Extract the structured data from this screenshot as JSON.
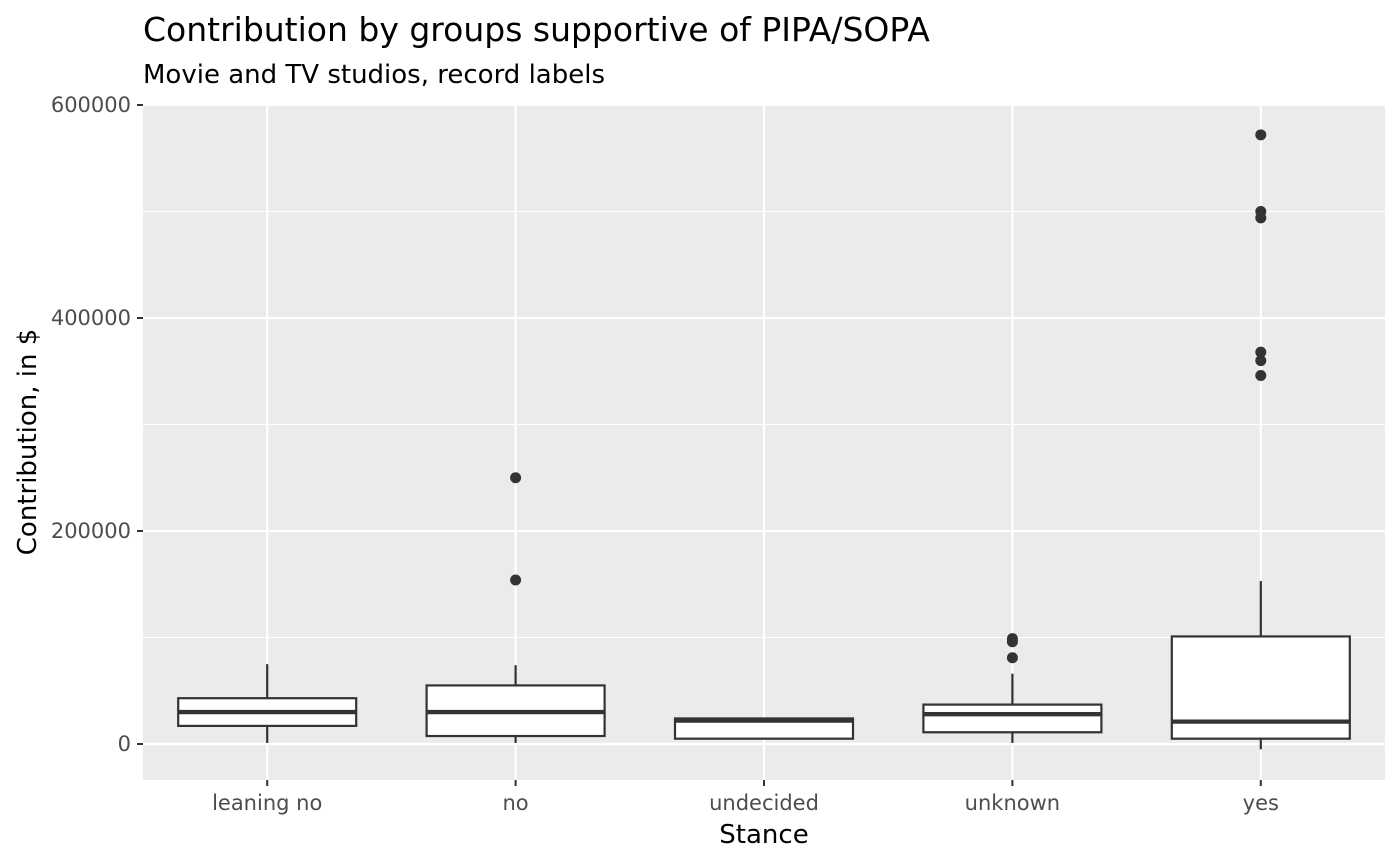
{
  "chart_data": {
    "type": "boxplot",
    "title": "Contribution by groups supportive of PIPA/SOPA",
    "subtitle": "Movie and TV studios, record labels",
    "xlabel": "Stance",
    "ylabel": "Contribution, in $",
    "categories": [
      "leaning no",
      "no",
      "undecided",
      "unknown",
      "yes"
    ],
    "ylim": [
      -33000,
      600000
    ],
    "y_ticks": [
      0,
      200000,
      400000,
      600000
    ],
    "y_tick_labels": [
      "0",
      "200000",
      "400000",
      "600000"
    ],
    "grid": true,
    "legend": "none",
    "boxes": [
      {
        "category": "leaning no",
        "whisker_low": 1000,
        "q1": 17000,
        "median": 30000,
        "q3": 43000,
        "whisker_high": 75000,
        "outliers": []
      },
      {
        "category": "no",
        "whisker_low": 1000,
        "q1": 7500,
        "median": 30000,
        "q3": 55000,
        "whisker_high": 74000,
        "outliers": [
          154000,
          250000
        ]
      },
      {
        "category": "undecided",
        "whisker_low": 5000,
        "q1": 5000,
        "median": 22000,
        "q3": 24000,
        "whisker_high": 24000,
        "outliers": []
      },
      {
        "category": "unknown",
        "whisker_low": 1000,
        "q1": 11000,
        "median": 28000,
        "q3": 37000,
        "whisker_high": 66000,
        "outliers": [
          81000,
          96000,
          99000
        ]
      },
      {
        "category": "yes",
        "whisker_low": -5000,
        "q1": 5000,
        "median": 21000,
        "q3": 101000,
        "whisker_high": 153000,
        "outliers": [
          346000,
          360000,
          368000,
          494000,
          500000,
          572000
        ]
      }
    ]
  },
  "colors": {
    "panel_background": "#ebebeb",
    "grid_major": "#ffffff",
    "grid_minor": "#f4f4f4",
    "box_fill": "#ffffff",
    "box_line": "#333333",
    "outlier": "#333333",
    "tick_mark": "#333333",
    "tick_label": "#4d4d4d",
    "text": "#000000"
  }
}
